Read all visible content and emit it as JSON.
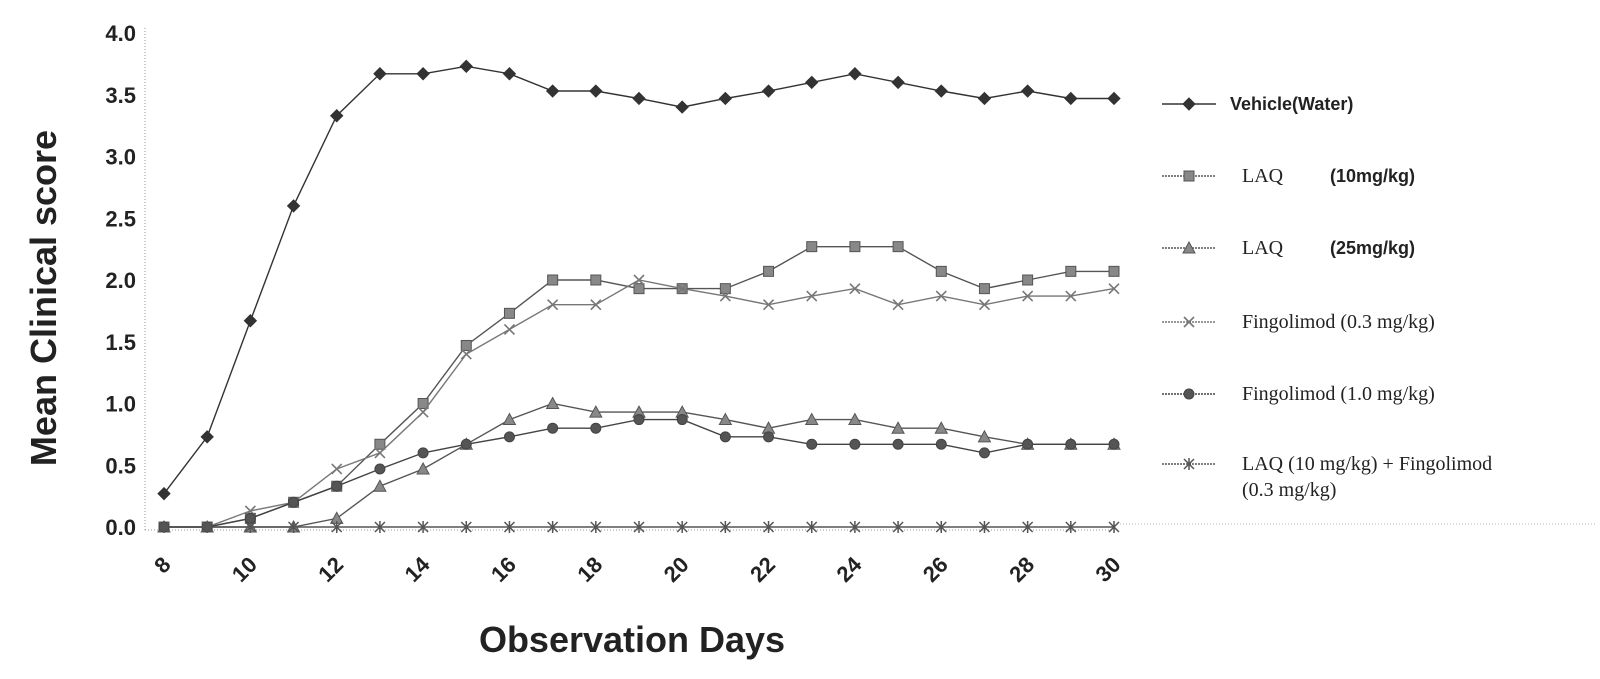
{
  "chart_data": {
    "type": "line",
    "xlabel": "Observation Days",
    "ylabel": "Mean Clinical score",
    "xlim": [
      8,
      30
    ],
    "ylim": [
      0,
      4
    ],
    "x_ticks": [
      "8",
      "10",
      "12",
      "14",
      "16",
      "18",
      "20",
      "22",
      "24",
      "26",
      "28",
      "30"
    ],
    "y_ticks": [
      "0.0",
      "0.5",
      "1.0",
      "1.5",
      "2.0",
      "2.5",
      "3.0",
      "3.5",
      "4.0"
    ],
    "x": [
      8,
      9,
      10,
      11,
      12,
      13,
      14,
      15,
      16,
      17,
      18,
      19,
      20,
      21,
      22,
      23,
      24,
      25,
      26,
      27,
      28,
      29,
      30
    ],
    "series": [
      {
        "name": "Vehicle(Water)",
        "marker": "diamond",
        "color": "#333333",
        "values": [
          0.27,
          0.73,
          1.67,
          2.6,
          3.33,
          3.67,
          3.67,
          3.73,
          3.67,
          3.53,
          3.53,
          3.47,
          3.4,
          3.47,
          3.53,
          3.6,
          3.67,
          3.6,
          3.53,
          3.47,
          3.53,
          3.47,
          3.47
        ]
      },
      {
        "name": "LAQ",
        "dose": "(10mg/kg)",
        "marker": "square",
        "color": "#555555",
        "values": [
          0.0,
          0.0,
          0.07,
          0.2,
          0.33,
          0.67,
          1.0,
          1.47,
          1.73,
          2.0,
          2.0,
          1.93,
          1.93,
          1.93,
          2.07,
          2.27,
          2.27,
          2.27,
          2.07,
          1.93,
          2.0,
          2.07,
          2.07
        ]
      },
      {
        "name": "LAQ",
        "dose": "(25mg/kg)",
        "marker": "triangle",
        "color": "#555555",
        "values": [
          0.0,
          0.0,
          0.0,
          0.0,
          0.07,
          0.33,
          0.47,
          0.67,
          0.87,
          1.0,
          0.93,
          0.93,
          0.93,
          0.87,
          0.8,
          0.87,
          0.87,
          0.8,
          0.8,
          0.73,
          0.67,
          0.67,
          0.67
        ]
      },
      {
        "name": "Fingolimod (0.3 mg/kg)",
        "marker": "x",
        "color": "#777777",
        "values": [
          0.0,
          0.0,
          0.13,
          0.2,
          0.47,
          0.6,
          0.93,
          1.4,
          1.6,
          1.8,
          1.8,
          2.0,
          1.93,
          1.87,
          1.8,
          1.87,
          1.93,
          1.8,
          1.87,
          1.8,
          1.87,
          1.87,
          1.93
        ]
      },
      {
        "name": "Fingolimod (1.0 mg/kg)",
        "marker": "circle",
        "color": "#444444",
        "values": [
          0.0,
          0.0,
          0.07,
          0.2,
          0.33,
          0.47,
          0.6,
          0.67,
          0.73,
          0.8,
          0.8,
          0.87,
          0.87,
          0.73,
          0.73,
          0.67,
          0.67,
          0.67,
          0.67,
          0.6,
          0.67,
          0.67,
          0.67
        ]
      },
      {
        "name": "LAQ (10 mg/kg) + Fingolimod",
        "name_line2": "(0.3 mg/kg)",
        "marker": "star",
        "color": "#555555",
        "values": [
          0.0,
          0.0,
          0.0,
          0.0,
          0.0,
          0.0,
          0.0,
          0.0,
          0.0,
          0.0,
          0.0,
          0.0,
          0.0,
          0.0,
          0.0,
          0.0,
          0.0,
          0.0,
          0.0,
          0.0,
          0.0,
          0.0,
          0.0
        ]
      }
    ],
    "legend_position": "right",
    "grid": false
  }
}
